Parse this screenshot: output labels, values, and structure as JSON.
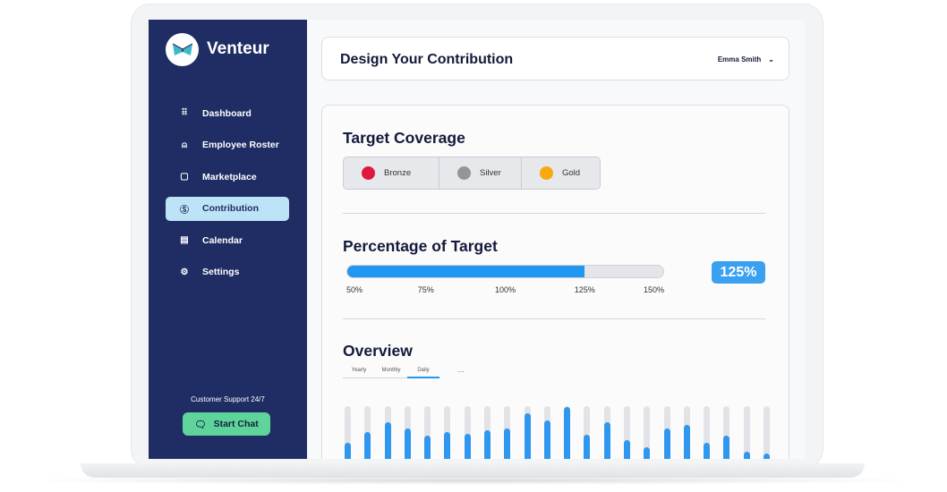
{
  "app": {
    "brand": "Venteur"
  },
  "sidebar": {
    "items": [
      {
        "label": "Dashboard",
        "icon": "grid-icon",
        "glyph": "⠿"
      },
      {
        "label": "Employee Roster",
        "icon": "user-icon",
        "glyph": "⍝"
      },
      {
        "label": "Marketplace",
        "icon": "shopping-bag-icon",
        "glyph": "▢"
      },
      {
        "label": "Contribution",
        "icon": "dollar-circle-icon",
        "glyph": "Ⓢ",
        "active": true
      },
      {
        "label": "Calendar",
        "icon": "calendar-icon",
        "glyph": "▤"
      },
      {
        "label": "Settings",
        "icon": "gear-icon",
        "glyph": "⚙"
      }
    ],
    "support_text": "Customer Support 24/7",
    "chat_label": "Start Chat"
  },
  "header": {
    "title": "Design Your Contribution",
    "user": "Emma Smith"
  },
  "coverage": {
    "title": "Target Coverage",
    "options": [
      {
        "label": "Bronze",
        "color": "#e0183f"
      },
      {
        "label": "Silver",
        "color": "#939598"
      },
      {
        "label": "Gold",
        "color": "#f7a90e"
      }
    ]
  },
  "target": {
    "title": "Percentage of Target",
    "value": 125,
    "min": 50,
    "max": 150,
    "value_label": "125%",
    "ticks": [
      "50%",
      "75%",
      "100%",
      "125%",
      "150%"
    ],
    "accent": "#2196f3"
  },
  "overview": {
    "title": "Overview",
    "tabs": [
      "Yearly",
      "Monthly",
      "Daily"
    ],
    "active_tab": "Daily",
    "more": "···",
    "bar_fractions": [
      0.31,
      0.51,
      0.7,
      0.58,
      0.45,
      0.51,
      0.48,
      0.55,
      0.59,
      0.87,
      0.73,
      0.99,
      0.46,
      0.7,
      0.37,
      0.23,
      0.58,
      0.65,
      0.31,
      0.45,
      0.15,
      0.11
    ]
  }
}
